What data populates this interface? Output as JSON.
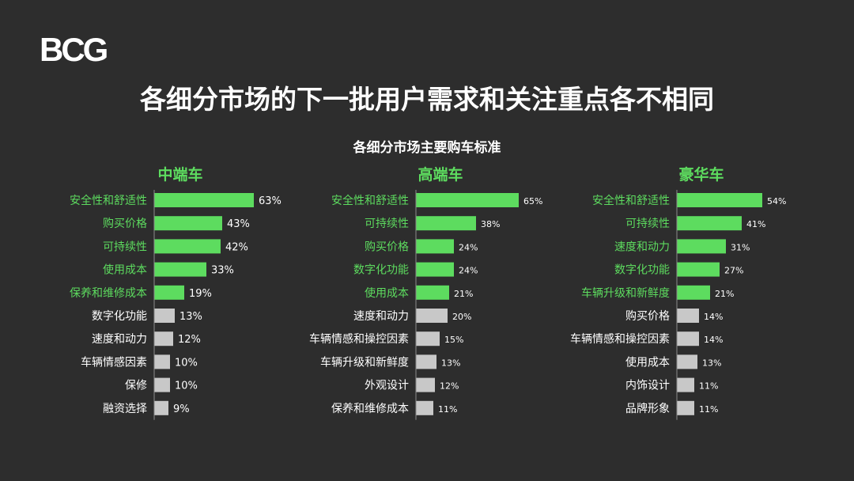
{
  "logo": "BCG",
  "title": "各细分市场的下一批用户需求和关注重点各不相同",
  "subtitle": "各细分市场主要购车标准",
  "colors": {
    "background": "#2d2d2d",
    "highlight": "#5ddc5f",
    "default_bar": "#c8c8c8",
    "text": "#ffffff"
  },
  "chart_data": [
    {
      "type": "bar",
      "orientation": "horizontal",
      "title": "中端车",
      "unit": "%",
      "categories": [
        "安全性和舒适性",
        "购买价格",
        "可持续性",
        "使用成本",
        "保养和维修成本",
        "数字化功能",
        "速度和动力",
        "车辆情感因素",
        "保修",
        "融资选择"
      ],
      "values": [
        63,
        43,
        42,
        33,
        19,
        13,
        12,
        10,
        10,
        9
      ],
      "highlighted": [
        true,
        true,
        true,
        true,
        true,
        false,
        false,
        false,
        false,
        false
      ]
    },
    {
      "type": "bar",
      "orientation": "horizontal",
      "title": "高端车",
      "unit": "%",
      "categories": [
        "安全性和舒适性",
        "可持续性",
        "购买价格",
        "数字化功能",
        "使用成本",
        "速度和动力",
        "车辆情感和操控因素",
        "车辆升级和新鲜度",
        "外观设计",
        "保养和维修成本"
      ],
      "values": [
        65,
        38,
        24,
        24,
        21,
        20,
        15,
        13,
        12,
        11
      ],
      "highlighted": [
        true,
        true,
        true,
        true,
        true,
        false,
        false,
        false,
        false,
        false
      ]
    },
    {
      "type": "bar",
      "orientation": "horizontal",
      "title": "豪华车",
      "unit": "%",
      "categories": [
        "安全性和舒适性",
        "可持续性",
        "速度和动力",
        "数字化功能",
        "车辆升级和新鲜度",
        "购买价格",
        "车辆情感和操控因素",
        "使用成本",
        "内饰设计",
        "品牌形象"
      ],
      "values": [
        54,
        41,
        31,
        27,
        21,
        14,
        14,
        13,
        11,
        11
      ],
      "highlighted": [
        true,
        true,
        true,
        true,
        true,
        false,
        false,
        false,
        false,
        false
      ]
    }
  ]
}
